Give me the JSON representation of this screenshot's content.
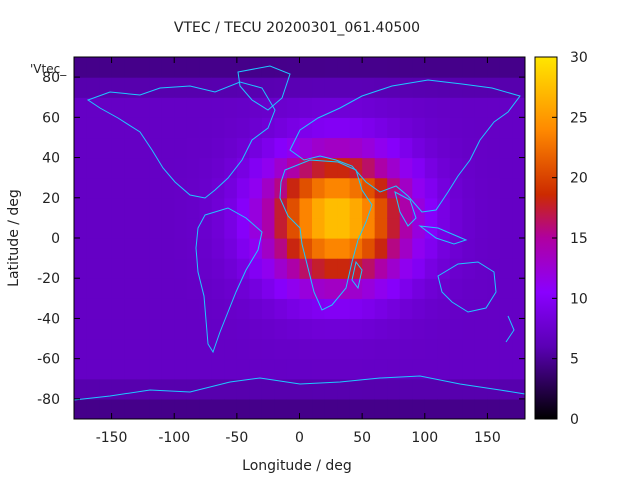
{
  "chart_data": {
    "type": "heatmap",
    "title": "VTEC / TECU 20200301_061.40500",
    "xlabel": "Longitude / deg",
    "ylabel": "Latitude / deg",
    "xlim": [
      -180,
      180
    ],
    "ylim": [
      -90,
      90
    ],
    "x_ticks": [
      -150,
      -100,
      -50,
      0,
      50,
      100,
      150
    ],
    "y_ticks": [
      80,
      60,
      40,
      20,
      0,
      -20,
      -40,
      -60,
      -80
    ],
    "colorbar": {
      "range": [
        0,
        30
      ],
      "ticks": [
        0,
        5,
        10,
        15,
        20,
        25,
        30
      ]
    },
    "series_key": "'Vtec_",
    "peak": {
      "lon": 30,
      "lat": 10,
      "value": 28
    },
    "background_tecu": 7,
    "overlay": "coastlines",
    "colors": {
      "line": "#1ec8ff",
      "low": "#000000",
      "mid": "#8a00ff",
      "high": "#ffe600"
    }
  }
}
